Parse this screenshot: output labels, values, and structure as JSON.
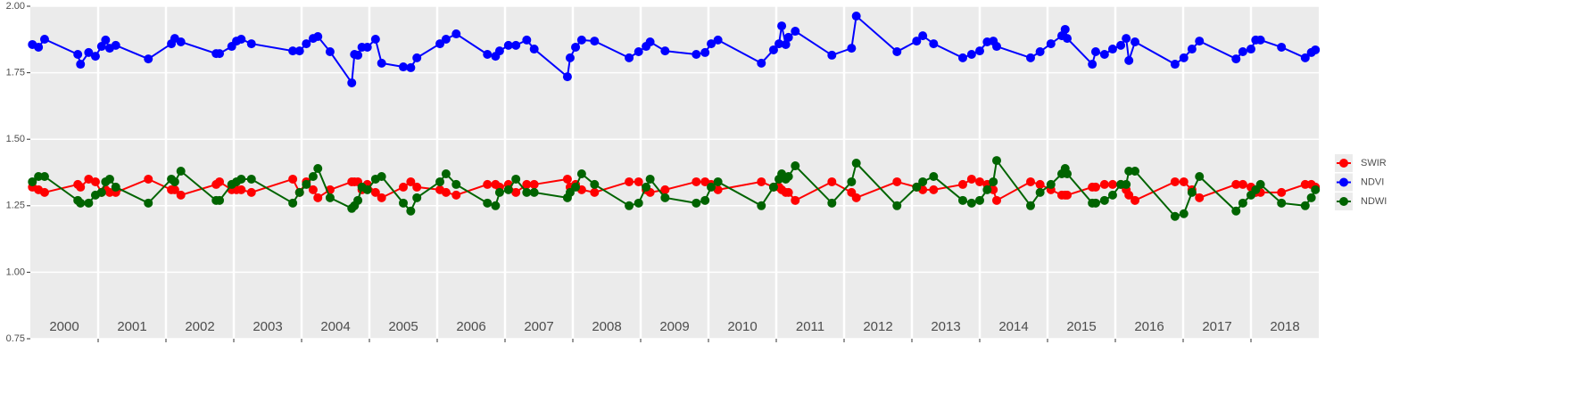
{
  "chart_data": {
    "type": "line",
    "xlim": [
      2000,
      2019
    ],
    "xticks": [
      2001,
      2002,
      2003,
      2004,
      2005,
      2006,
      2007,
      2008,
      2009,
      2010,
      2011,
      2012,
      2013,
      2014,
      2015,
      2016,
      2017,
      2018
    ],
    "ylim": [
      0.75,
      2.0
    ],
    "yticks": [
      {
        "value": 0.75,
        "label": "0.75"
      },
      {
        "value": 1.0,
        "label": "1.00"
      },
      {
        "value": 1.25,
        "label": "1.25"
      },
      {
        "value": 1.5,
        "label": "1.50"
      },
      {
        "value": 1.75,
        "label": "1.75"
      },
      {
        "value": 2.0,
        "label": "2.00"
      }
    ],
    "grid": true,
    "legend": "right",
    "year_labels": [
      "2000",
      "2001",
      "2002",
      "2003",
      "2004",
      "2005",
      "2006",
      "2007",
      "2008",
      "2009",
      "2010",
      "2011",
      "2012",
      "2013",
      "2014",
      "2015",
      "2016",
      "2017",
      "2018"
    ],
    "x": [
      2000.03,
      2000.12,
      2000.21,
      2000.7,
      2000.74,
      2000.86,
      2000.96,
      2001.05,
      2001.11,
      2001.17,
      2001.26,
      2001.74,
      2002.08,
      2002.13,
      2002.22,
      2002.74,
      2002.79,
      2002.97,
      2003.04,
      2003.11,
      2003.26,
      2003.87,
      2003.97,
      2004.07,
      2004.17,
      2004.24,
      2004.42,
      2004.74,
      2004.78,
      2004.83,
      2004.89,
      2004.97,
      2005.09,
      2005.18,
      2005.5,
      2005.61,
      2005.7,
      2006.04,
      2006.13,
      2006.28,
      2006.74,
      2006.86,
      2006.92,
      2007.05,
      2007.16,
      2007.32,
      2007.43,
      2007.92,
      2007.96,
      2008.04,
      2008.13,
      2008.32,
      2008.83,
      2008.97,
      2009.08,
      2009.14,
      2009.36,
      2009.82,
      2009.95,
      2010.04,
      2010.14,
      2010.78,
      2010.96,
      2011.04,
      2011.08,
      2011.14,
      2011.18,
      2011.28,
      2011.82,
      2012.11,
      2012.18,
      2012.78,
      2013.07,
      2013.16,
      2013.32,
      2013.75,
      2013.88,
      2014.0,
      2014.11,
      2014.2,
      2014.25,
      2014.75,
      2014.89,
      2015.05,
      2015.21,
      2015.26,
      2015.29,
      2015.66,
      2015.71,
      2015.84,
      2015.96,
      2016.08,
      2016.16,
      2016.2,
      2016.29,
      2016.88,
      2017.01,
      2017.13,
      2017.24,
      2017.78,
      2017.88,
      2018.0,
      2018.07,
      2018.14,
      2018.45,
      2018.8,
      2018.89,
      2018.95
    ],
    "series": [
      {
        "name": "SWIR",
        "color": "#ff0000",
        "values": [
          1.32,
          1.31,
          1.3,
          1.33,
          1.32,
          1.35,
          1.34,
          1.3,
          1.31,
          1.3,
          1.3,
          1.35,
          1.31,
          1.31,
          1.29,
          1.33,
          1.34,
          1.31,
          1.31,
          1.31,
          1.3,
          1.35,
          1.3,
          1.34,
          1.31,
          1.28,
          1.31,
          1.34,
          1.34,
          1.34,
          1.31,
          1.33,
          1.3,
          1.28,
          1.32,
          1.34,
          1.32,
          1.31,
          1.3,
          1.29,
          1.33,
          1.33,
          1.32,
          1.33,
          1.3,
          1.33,
          1.33,
          1.35,
          1.32,
          1.33,
          1.31,
          1.3,
          1.34,
          1.34,
          1.31,
          1.3,
          1.31,
          1.34,
          1.34,
          1.33,
          1.31,
          1.34,
          1.32,
          1.32,
          1.31,
          1.3,
          1.3,
          1.27,
          1.34,
          1.3,
          1.28,
          1.34,
          1.32,
          1.31,
          1.31,
          1.33,
          1.35,
          1.34,
          1.33,
          1.31,
          1.27,
          1.34,
          1.33,
          1.31,
          1.29,
          1.29,
          1.29,
          1.32,
          1.32,
          1.33,
          1.33,
          1.33,
          1.31,
          1.29,
          1.27,
          1.34,
          1.34,
          1.31,
          1.28,
          1.33,
          1.33,
          1.32,
          1.3,
          1.3,
          1.3,
          1.33,
          1.33,
          1.32
        ]
      },
      {
        "name": "NDVI",
        "color": "#0000ff",
        "values": [
          1.856,
          1.846,
          1.876,
          1.819,
          1.782,
          1.826,
          1.812,
          1.849,
          1.873,
          1.842,
          1.853,
          1.802,
          1.859,
          1.879,
          1.866,
          1.822,
          1.822,
          1.849,
          1.869,
          1.876,
          1.859,
          1.832,
          1.832,
          1.859,
          1.879,
          1.886,
          1.829,
          1.712,
          1.819,
          1.816,
          1.846,
          1.846,
          1.876,
          1.786,
          1.772,
          1.769,
          1.806,
          1.859,
          1.876,
          1.896,
          1.819,
          1.812,
          1.832,
          1.853,
          1.853,
          1.873,
          1.839,
          1.735,
          1.806,
          1.846,
          1.873,
          1.869,
          1.806,
          1.829,
          1.849,
          1.866,
          1.832,
          1.819,
          1.826,
          1.859,
          1.873,
          1.786,
          1.836,
          1.859,
          1.926,
          1.856,
          1.883,
          1.906,
          1.816,
          1.842,
          1.963,
          1.829,
          1.869,
          1.889,
          1.859,
          1.806,
          1.819,
          1.832,
          1.866,
          1.869,
          1.849,
          1.806,
          1.829,
          1.859,
          1.889,
          1.913,
          1.879,
          1.782,
          1.829,
          1.819,
          1.839,
          1.853,
          1.879,
          1.796,
          1.866,
          1.782,
          1.806,
          1.839,
          1.869,
          1.802,
          1.829,
          1.839,
          1.873,
          1.873,
          1.846,
          1.806,
          1.826,
          1.836
        ]
      },
      {
        "name": "NDWI",
        "color": "#006400",
        "values": [
          1.34,
          1.36,
          1.36,
          1.27,
          1.26,
          1.26,
          1.29,
          1.3,
          1.34,
          1.35,
          1.32,
          1.26,
          1.35,
          1.34,
          1.38,
          1.27,
          1.27,
          1.33,
          1.34,
          1.35,
          1.35,
          1.26,
          1.3,
          1.33,
          1.36,
          1.39,
          1.28,
          1.24,
          1.25,
          1.27,
          1.32,
          1.31,
          1.35,
          1.36,
          1.26,
          1.23,
          1.28,
          1.34,
          1.37,
          1.33,
          1.26,
          1.25,
          1.3,
          1.31,
          1.35,
          1.3,
          1.3,
          1.28,
          1.3,
          1.32,
          1.37,
          1.33,
          1.25,
          1.26,
          1.32,
          1.35,
          1.28,
          1.26,
          1.27,
          1.32,
          1.34,
          1.25,
          1.32,
          1.35,
          1.37,
          1.35,
          1.36,
          1.4,
          1.26,
          1.34,
          1.41,
          1.25,
          1.32,
          1.34,
          1.36,
          1.27,
          1.26,
          1.27,
          1.31,
          1.34,
          1.42,
          1.25,
          1.3,
          1.33,
          1.37,
          1.39,
          1.37,
          1.26,
          1.26,
          1.27,
          1.29,
          1.33,
          1.33,
          1.38,
          1.38,
          1.21,
          1.22,
          1.3,
          1.36,
          1.23,
          1.26,
          1.29,
          1.31,
          1.33,
          1.26,
          1.25,
          1.28,
          1.31
        ]
      }
    ]
  }
}
